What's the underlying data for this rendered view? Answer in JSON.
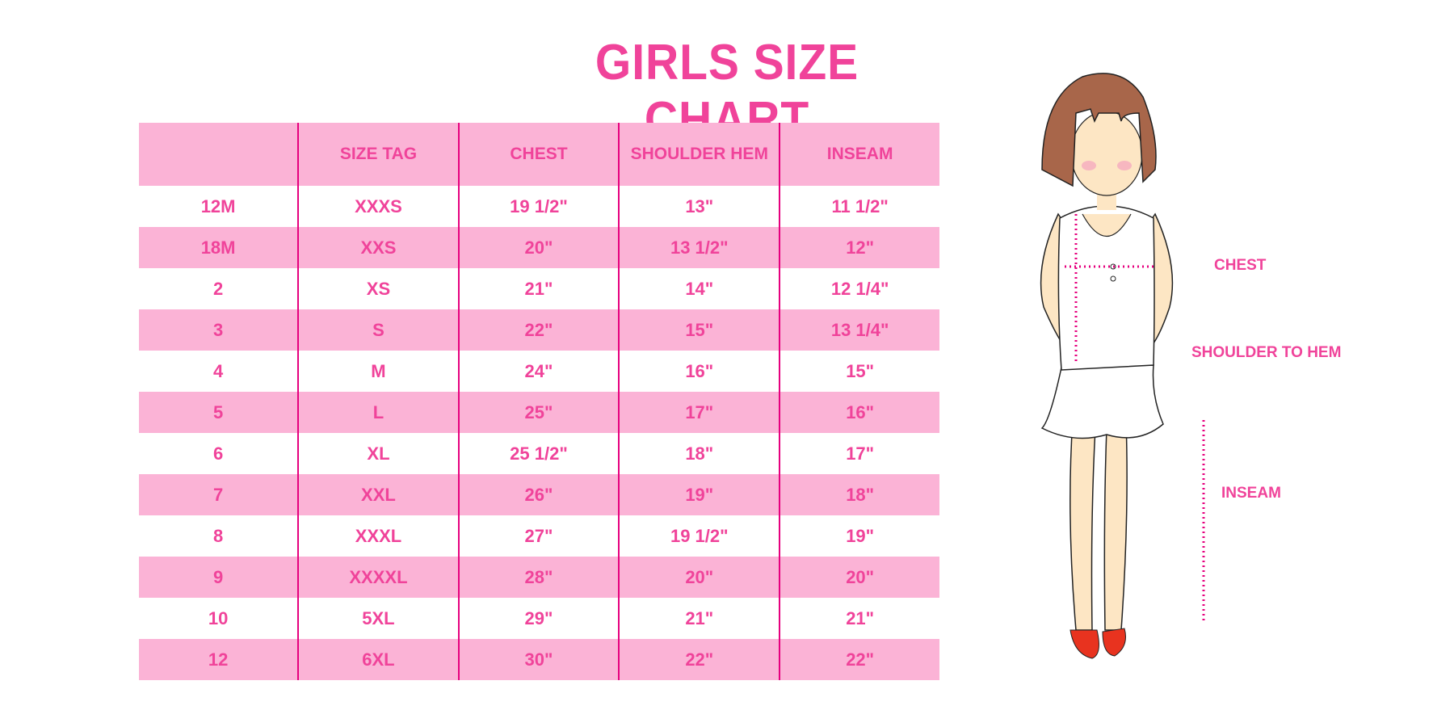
{
  "title": "GIRLS SIZE CHART",
  "headers": [
    "",
    "SIZE TAG",
    "CHEST",
    "SHOULDER HEM",
    "INSEAM"
  ],
  "rows": [
    [
      "12M",
      "XXXS",
      "19 1/2\"",
      "13\"",
      "11 1/2\""
    ],
    [
      "18M",
      "XXS",
      "20\"",
      "13 1/2\"",
      "12\""
    ],
    [
      "2",
      "XS",
      "21\"",
      "14\"",
      "12 1/4\""
    ],
    [
      "3",
      "S",
      "22\"",
      "15\"",
      "13 1/4\""
    ],
    [
      "4",
      "M",
      "24\"",
      "16\"",
      "15\""
    ],
    [
      "5",
      "L",
      "25\"",
      "17\"",
      "16\""
    ],
    [
      "6",
      "XL",
      "25 1/2\"",
      "18\"",
      "17\""
    ],
    [
      "7",
      "XXL",
      "26\"",
      "19\"",
      "18\""
    ],
    [
      "8",
      "XXXL",
      "27\"",
      "19 1/2\"",
      "19\""
    ],
    [
      "9",
      "XXXXL",
      "28\"",
      "20\"",
      "20\""
    ],
    [
      "10",
      "5XL",
      "29\"",
      "21\"",
      "21\""
    ],
    [
      "12",
      "6XL",
      "30\"",
      "22\"",
      "22\""
    ]
  ],
  "figure_labels": {
    "chest": "CHEST",
    "shoulder": "SHOULDER TO HEM",
    "inseam": "INSEAM"
  },
  "colors": {
    "accent": "#f0439a",
    "row_pink": "#fbb3d6",
    "divider": "#e6007e"
  }
}
